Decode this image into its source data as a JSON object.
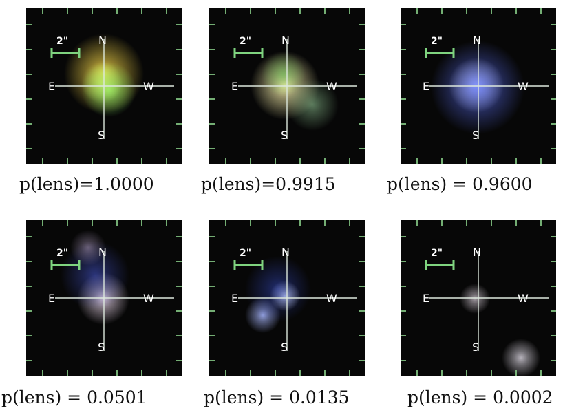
{
  "panels": [
    {
      "caption": "p(lens)=1.0000",
      "compass": {
        "n": "N",
        "s": "S",
        "e": "E",
        "w": "W"
      },
      "scale_label": "2\"",
      "sources": [
        {
          "color": "#f2d448",
          "strength": 0.95
        },
        {
          "color": "#8ef56a",
          "strength": 0.85
        },
        {
          "color": "#c6f06a",
          "strength": 0.7
        }
      ]
    },
    {
      "caption": "p(lens)=0.9915",
      "compass": {
        "n": "N",
        "s": "S",
        "e": "E",
        "w": "W"
      },
      "scale_label": "2\"",
      "sources": [
        {
          "color": "#fff6b0",
          "strength": 0.95
        },
        {
          "color": "#6fc85a",
          "strength": 0.6
        },
        {
          "color": "#9ed7a0",
          "strength": 0.55
        }
      ]
    },
    {
      "caption": "p(lens) = 0.9600",
      "compass": {
        "n": "N",
        "s": "S",
        "e": "E",
        "w": "W"
      },
      "scale_label": "2\"",
      "sources": [
        {
          "color": "#e8ecff",
          "strength": 0.9
        },
        {
          "color": "#5f74ff",
          "strength": 0.75
        }
      ]
    },
    {
      "caption": "p(lens) = 0.0501",
      "compass": {
        "n": "N",
        "s": "S",
        "e": "E",
        "w": "W"
      },
      "scale_label": "2\"",
      "sources": [
        {
          "color": "#f0dcef",
          "strength": 0.85
        },
        {
          "color": "#4859d8",
          "strength": 0.55
        },
        {
          "color": "#c7b2da",
          "strength": 0.5
        }
      ]
    },
    {
      "caption": "p(lens) = 0.0135",
      "compass": {
        "n": "N",
        "s": "S",
        "e": "E",
        "w": "W"
      },
      "scale_label": "2\"",
      "sources": [
        {
          "color": "#dfe8ff",
          "strength": 0.85
        },
        {
          "color": "#a9b8ff",
          "strength": 0.85
        },
        {
          "color": "#3b52d8",
          "strength": 0.5
        }
      ]
    },
    {
      "caption": "p(lens) = 0.0002",
      "compass": {
        "n": "N",
        "s": "S",
        "e": "E",
        "w": "W"
      },
      "scale_label": "2\"",
      "sources": [
        {
          "color": "#d6ccd6",
          "strength": 0.75
        },
        {
          "color": "#e0dbe6",
          "strength": 0.8
        }
      ]
    }
  ]
}
